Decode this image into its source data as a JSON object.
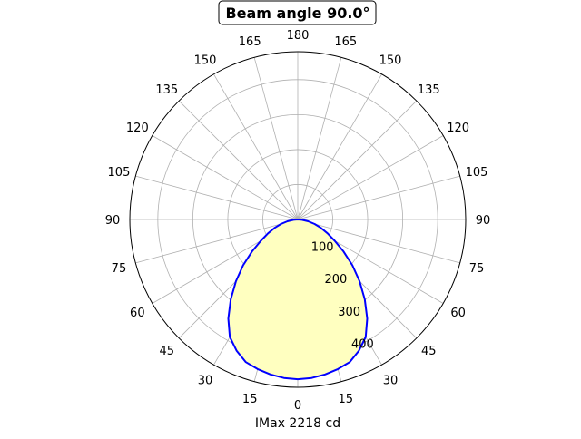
{
  "chart_data": {
    "type": "polar-area",
    "title": "Beam angle 90.0°",
    "xlabel": "IMax 2218 cd",
    "theta_tick_labels": [
      "0",
      "15",
      "30",
      "45",
      "60",
      "75",
      "90",
      "105",
      "120",
      "135",
      "150",
      "165",
      "180"
    ],
    "r_tick_labels": [
      "100",
      "200",
      "300",
      "400"
    ],
    "r_ticks": [
      100,
      200,
      300,
      400
    ],
    "rlim": [
      0,
      480
    ],
    "theta_zero": "bottom",
    "symmetric": true,
    "grid": true,
    "series": [
      {
        "angles_deg": [
          0,
          5,
          10,
          15,
          20,
          25,
          30,
          35,
          40,
          45,
          50,
          55,
          60,
          65,
          70,
          75,
          80,
          85,
          90
        ],
        "values": [
          457,
          455,
          450,
          443,
          434,
          414,
          388,
          346,
          298,
          250,
          204,
          160,
          122,
          94,
          70,
          50,
          30,
          12,
          0
        ]
      }
    ],
    "colors": {
      "line": "#0000ff",
      "fill": "#ffffc0",
      "grid": "#b0b0b0"
    }
  }
}
